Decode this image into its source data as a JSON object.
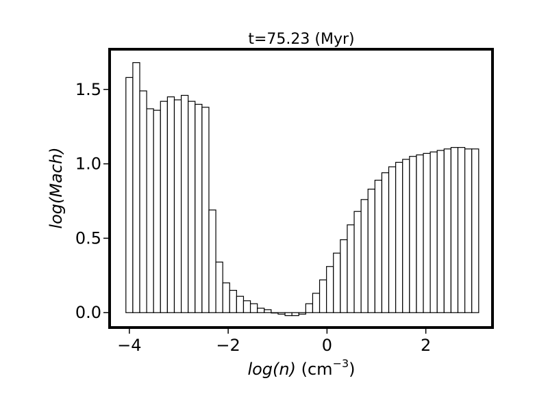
{
  "chart_data": {
    "type": "bar",
    "title": "t=75.23 (Myr)",
    "xlabel": {
      "italic": "log(n)",
      "plain": " (cm",
      "sup": "−3",
      "close": ")"
    },
    "ylabel": "log(Mach)",
    "xlim": [
      -4.4,
      3.35
    ],
    "ylim": [
      -0.1,
      1.77
    ],
    "xticks": [
      {
        "value": -4,
        "label": "−4"
      },
      {
        "value": -2,
        "label": "−2"
      },
      {
        "value": 0,
        "label": "0"
      },
      {
        "value": 2,
        "label": "2"
      }
    ],
    "yticks": [
      {
        "value": 0.0,
        "label": "0.0"
      },
      {
        "value": 0.5,
        "label": "0.5"
      },
      {
        "value": 1.0,
        "label": "1.0"
      },
      {
        "value": 1.5,
        "label": "1.5"
      }
    ],
    "grid": false,
    "bin_start": -4.07,
    "bin_width": 0.14,
    "values": [
      1.58,
      1.68,
      1.49,
      1.37,
      1.36,
      1.42,
      1.45,
      1.43,
      1.46,
      1.42,
      1.4,
      1.38,
      0.69,
      0.34,
      0.2,
      0.15,
      0.11,
      0.08,
      0.06,
      0.03,
      0.02,
      0.0,
      -0.01,
      -0.02,
      -0.02,
      -0.01,
      0.06,
      0.13,
      0.22,
      0.31,
      0.4,
      0.49,
      0.59,
      0.68,
      0.76,
      0.83,
      0.89,
      0.94,
      0.98,
      1.01,
      1.03,
      1.05,
      1.06,
      1.07,
      1.08,
      1.09,
      1.1,
      1.11,
      1.11,
      1.1,
      1.1
    ]
  }
}
